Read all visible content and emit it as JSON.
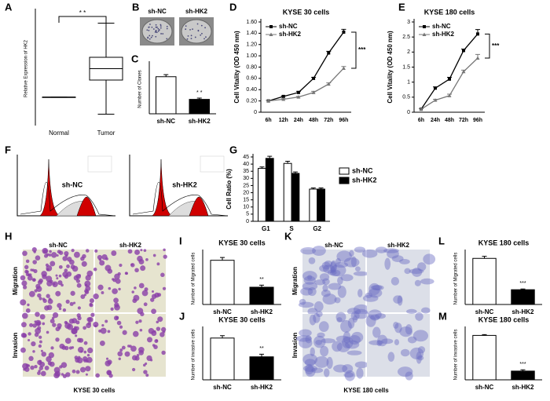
{
  "chart_data": [
    {
      "type": "box",
      "label": "A",
      "ylabel": "Relative Expression of HK2",
      "categories": [
        "Normal",
        "Tumor"
      ],
      "boxes": [
        {
          "min": 1,
          "q1": 1,
          "median": 1,
          "q3": 1,
          "max": 1
        },
        {
          "min": 0.4,
          "q1": 1.6,
          "median": 2.0,
          "q3": 2.4,
          "max": 3.6
        }
      ],
      "ylim": [
        0,
        4
      ],
      "annotation": "* *"
    },
    {
      "type": "bar",
      "label": "C",
      "ylabel": "Number of Clones",
      "categories": [
        "sh-NC",
        "sh-HK2"
      ],
      "values": [
        90,
        35
      ],
      "errors": [
        5,
        3
      ],
      "colors": [
        "#ffffff",
        "#000000"
      ],
      "ylim": [
        0,
        120
      ],
      "annotation": "* *"
    },
    {
      "type": "line",
      "label": "D",
      "title": "KYSE 30 cells",
      "ylabel": "Cell Vitality (OD 450 nm)",
      "categories": [
        "6h",
        "12h",
        "24h",
        "48h",
        "72h",
        "96h"
      ],
      "series": [
        {
          "name": "sh-NC",
          "color": "#000000",
          "marker": "square",
          "values": [
            0.2,
            0.28,
            0.35,
            0.6,
            1.05,
            1.42
          ],
          "errors": [
            0.01,
            0.01,
            0.02,
            0.02,
            0.03,
            0.05
          ]
        },
        {
          "name": "sh-HK2",
          "color": "#777777",
          "marker": "triangle",
          "values": [
            0.2,
            0.23,
            0.27,
            0.35,
            0.5,
            0.78
          ],
          "errors": [
            0.01,
            0.01,
            0.01,
            0.02,
            0.02,
            0.03
          ]
        }
      ],
      "ylim": [
        0,
        1.6
      ],
      "yticks": [
        0,
        {
          "value": 0.2,
          "label": "0.20"
        },
        {
          "value": 0.4,
          "label": "0.40"
        },
        {
          "value": 0.6,
          "label": "0.60"
        },
        {
          "value": 0.8,
          "label": "0.80"
        },
        {
          "value": 1.0,
          "label": "1.00"
        },
        {
          "value": 1.2,
          "label": "1.20"
        },
        {
          "value": 1.4,
          "label": "1.40"
        },
        {
          "value": 1.6,
          "label": "1.60"
        }
      ],
      "annotation": "***"
    },
    {
      "type": "line",
      "label": "E",
      "title": "KYSE 180 cells",
      "ylabel": "Cell Vitality (OD 450 nm)",
      "categories": [
        "6h",
        "24h",
        "48h",
        "72h",
        "96h"
      ],
      "series": [
        {
          "name": "sh-NC",
          "color": "#000000",
          "marker": "square",
          "values": [
            0.1,
            0.8,
            1.1,
            2.05,
            2.6
          ],
          "errors": [
            0.02,
            0.04,
            0.06,
            0.05,
            0.15
          ]
        },
        {
          "name": "sh-HK2",
          "color": "#777777",
          "marker": "triangle",
          "values": [
            0.1,
            0.4,
            0.55,
            1.35,
            1.8
          ],
          "errors": [
            0.02,
            0.03,
            0.05,
            0.05,
            0.12
          ]
        }
      ],
      "ylim": [
        0,
        3
      ],
      "yticks": [
        0,
        0.5,
        1,
        1.5,
        2,
        2.5,
        3
      ],
      "annotation": "***"
    },
    {
      "type": "groupbar",
      "label": "G",
      "ylabel": "Cell Ratio (%)",
      "categories": [
        "G1",
        "S",
        "G2"
      ],
      "series": [
        {
          "name": "sh-NC",
          "color": "#ffffff",
          "values": [
            37,
            40.5,
            22.5
          ],
          "errors": [
            1,
            1.5,
            0.8
          ]
        },
        {
          "name": "sh-HK2",
          "color": "#000000",
          "values": [
            44,
            33.5,
            22.5
          ],
          "errors": [
            1.5,
            1,
            0.8
          ]
        }
      ],
      "ylim": [
        0,
        45
      ],
      "yticks": [
        0,
        5,
        10,
        15,
        20,
        25,
        30,
        35,
        40,
        45
      ]
    },
    {
      "type": "bar",
      "label": "I",
      "title": "KYSE 30 cells",
      "ylabel": "Number of Migrated cells",
      "categories": [
        "sh-NC",
        "sh-HK2"
      ],
      "values": [
        128,
        50
      ],
      "errors": [
        8,
        6
      ],
      "colors": [
        "#ffffff",
        "#000000"
      ],
      "ylim": [
        0,
        150
      ],
      "annotation": "**"
    },
    {
      "type": "bar",
      "label": "J",
      "title": "KYSE 30 cells",
      "ylabel": "Number of invasive cells",
      "categories": [
        "sh-NC",
        "sh-HK2"
      ],
      "values": [
        158,
        87
      ],
      "errors": [
        9,
        10
      ],
      "colors": [
        "#ffffff",
        "#000000"
      ],
      "ylim": [
        0,
        190
      ],
      "annotation": "**"
    },
    {
      "type": "bar",
      "label": "L",
      "title": "KYSE 180 cells",
      "ylabel": "Number of Migrated cells",
      "categories": [
        "sh-NC",
        "sh-HK2"
      ],
      "values": [
        178,
        57
      ],
      "errors": [
        8,
        3
      ],
      "colors": [
        "#ffffff",
        "#000000"
      ],
      "ylim": [
        0,
        200
      ],
      "annotation": "***"
    },
    {
      "type": "bar",
      "label": "M",
      "title": "KYSE 180 cells",
      "ylabel": "Number of invasive cells",
      "categories": [
        "sh-NC",
        "sh-HK2"
      ],
      "values": [
        168,
        33
      ],
      "errors": [
        3,
        5
      ],
      "colors": [
        "#ffffff",
        "#000000"
      ],
      "ylim": [
        0,
        190
      ],
      "annotation": "***"
    }
  ],
  "images": [
    {
      "label": "B",
      "columns": [
        "sh-NC",
        "sh-HK2"
      ]
    },
    {
      "label": "F",
      "columns": [
        "sh-NC",
        "sh-HK2"
      ]
    },
    {
      "label": "H",
      "columns": [
        "sh-NC",
        "sh-HK2"
      ],
      "rows": [
        "Migration",
        "Invasion"
      ],
      "caption": "KYSE 30 cells"
    },
    {
      "label": "K",
      "columns": [
        "sh-NC",
        "sh-HK2"
      ],
      "rows": [
        "Migration",
        "Invasion"
      ],
      "caption": "KYSE 180 cells"
    }
  ]
}
